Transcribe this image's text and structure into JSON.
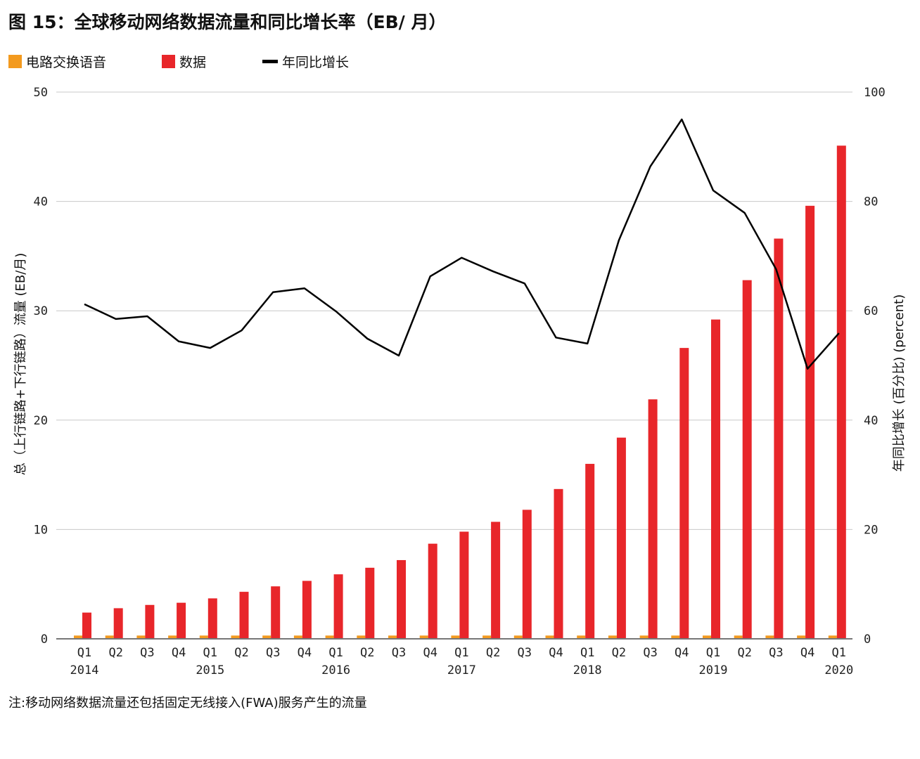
{
  "title": "图 15：全球移动网络数据流量和同比增长率（EB/ 月）",
  "note": "注:移动网络数据流量还包括固定无线接入(FWA)服务产生的流量",
  "chart_data": {
    "type": "bar",
    "title": "图 15：全球移动网络数据流量和同比增长率（EB/ 月）",
    "ylabel": "总（上行链路+下行链路）流量 (EB/月)",
    "y2label": "年同比增长 (百分比) (percent)",
    "ylim": [
      0,
      50
    ],
    "y2lim": [
      0,
      100
    ],
    "yticks": [
      "0",
      "10",
      "20",
      "30",
      "40",
      "50"
    ],
    "y2ticks": [
      "0",
      "20",
      "40",
      "60",
      "80",
      "100"
    ],
    "grid": true,
    "legend_position": "top-left",
    "categories": [
      "Q1",
      "Q2",
      "Q3",
      "Q4",
      "Q1",
      "Q2",
      "Q3",
      "Q4",
      "Q1",
      "Q2",
      "Q3",
      "Q4",
      "Q1",
      "Q2",
      "Q3",
      "Q4",
      "Q1",
      "Q2",
      "Q3",
      "Q4",
      "Q1",
      "Q2",
      "Q3",
      "Q4",
      "Q1"
    ],
    "years": [
      {
        "label": "2014",
        "index": 0
      },
      {
        "label": "2015",
        "index": 4
      },
      {
        "label": "2016",
        "index": 8
      },
      {
        "label": "2017",
        "index": 12
      },
      {
        "label": "2018",
        "index": 16
      },
      {
        "label": "2019",
        "index": 20
      },
      {
        "label": "2020",
        "index": 24
      }
    ],
    "series": [
      {
        "name": "电路交换语音",
        "type": "bar",
        "axis": "left",
        "color": "#f39a1e",
        "values": [
          0.3,
          0.3,
          0.3,
          0.3,
          0.3,
          0.3,
          0.3,
          0.3,
          0.3,
          0.3,
          0.3,
          0.3,
          0.3,
          0.3,
          0.3,
          0.3,
          0.3,
          0.3,
          0.3,
          0.3,
          0.3,
          0.3,
          0.3,
          0.3,
          0.3
        ]
      },
      {
        "name": "数据",
        "type": "bar",
        "axis": "left",
        "color": "#e8262a",
        "values": [
          2.4,
          2.8,
          3.1,
          3.3,
          3.7,
          4.3,
          4.8,
          5.3,
          5.9,
          6.5,
          7.2,
          8.7,
          9.8,
          10.7,
          11.8,
          13.7,
          16.0,
          18.4,
          21.9,
          26.6,
          29.2,
          32.8,
          36.6,
          39.6,
          45.1
        ]
      },
      {
        "name": "年同比增长",
        "type": "line",
        "axis": "right",
        "color": "#000000",
        "values": [
          61.2,
          58.5,
          59.0,
          54.4,
          53.2,
          56.4,
          63.4,
          64.1,
          59.9,
          54.9,
          51.8,
          66.3,
          69.7,
          67.2,
          65.0,
          55.1,
          54.0,
          72.9,
          86.4,
          95.0,
          82.0,
          77.9,
          67.6,
          49.4,
          55.9
        ]
      }
    ]
  }
}
